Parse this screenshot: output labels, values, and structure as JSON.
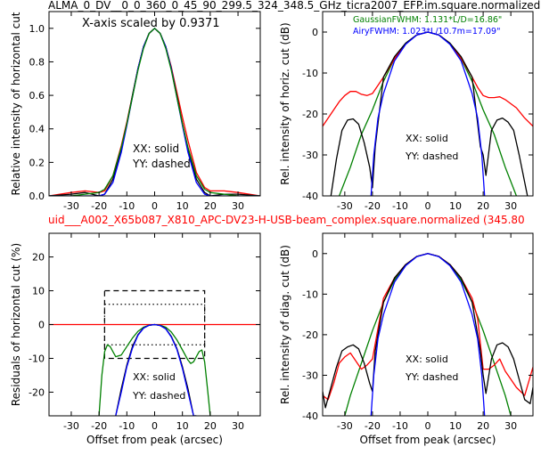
{
  "figure": {
    "top_title": "ALMA_0_DV__0_0_360_0_45_90_299.5_324_348.5_GHz_ticra2007_EFP.im.square.normalized",
    "mid_title": "uid___A002_X65b087_X810_APC-DV23-H-USB-beam_complex.square.normalized (345.80",
    "colors": {
      "black": "#000000",
      "blue": "#0000ff",
      "green": "#008000",
      "red": "#ff0000"
    }
  },
  "chart_data": [
    {
      "id": "horiz_linear",
      "type": "line",
      "ylabel": "Relative intensity of horizontal cut",
      "xlabel": "",
      "xlim": [
        -38,
        38
      ],
      "ylim": [
        0,
        1.1
      ],
      "xticks": [
        -30,
        -20,
        -10,
        0,
        10,
        20,
        30
      ],
      "yticks": [
        0.0,
        0.2,
        0.4,
        0.6,
        0.8,
        1.0
      ],
      "annotations": [
        "X-axis scaled by 0.9371",
        "XX: solid",
        "YY: dashed"
      ],
      "series": [
        {
          "color": "red",
          "x": [
            -38,
            -30,
            -25,
            -20,
            -18,
            -15,
            -12,
            -10,
            -8,
            -6,
            -4,
            -2,
            0,
            2,
            4,
            6,
            8,
            10,
            12,
            15,
            18,
            20,
            25,
            30,
            38
          ],
          "y": [
            0.0,
            0.02,
            0.03,
            0.02,
            0.03,
            0.12,
            0.3,
            0.44,
            0.6,
            0.76,
            0.89,
            0.97,
            1.0,
            0.97,
            0.89,
            0.77,
            0.62,
            0.47,
            0.33,
            0.14,
            0.05,
            0.03,
            0.03,
            0.02,
            0.0
          ]
        },
        {
          "color": "black",
          "x": [
            -38,
            -30,
            -25,
            -20,
            -18,
            -15,
            -12,
            -10,
            -8,
            -6,
            -4,
            -2,
            0,
            2,
            4,
            6,
            8,
            10,
            12,
            15,
            18,
            20,
            25,
            30,
            38
          ],
          "y": [
            0.0,
            0.01,
            0.02,
            0.0,
            0.01,
            0.1,
            0.28,
            0.43,
            0.6,
            0.76,
            0.89,
            0.97,
            1.0,
            0.97,
            0.89,
            0.76,
            0.6,
            0.43,
            0.28,
            0.1,
            0.02,
            0.0,
            0.01,
            0.01,
            0.0
          ]
        },
        {
          "color": "blue",
          "x": [
            -38,
            -30,
            -25,
            -20,
            -18,
            -15,
            -12,
            -10,
            -8,
            -6,
            -4,
            -2,
            0,
            2,
            4,
            6,
            8,
            10,
            12,
            15,
            18,
            20,
            25,
            30,
            38
          ],
          "y": [
            0.0,
            0.0,
            0.0,
            0.0,
            0.01,
            0.08,
            0.26,
            0.42,
            0.59,
            0.76,
            0.89,
            0.97,
            1.0,
            0.97,
            0.89,
            0.76,
            0.59,
            0.42,
            0.26,
            0.08,
            0.01,
            0.0,
            0.0,
            0.0,
            0.0
          ]
        },
        {
          "color": "green",
          "x": [
            -38,
            -30,
            -25,
            -20,
            -18,
            -15,
            -12,
            -10,
            -8,
            -6,
            -4,
            -2,
            0,
            2,
            4,
            6,
            8,
            10,
            12,
            15,
            18,
            20,
            25,
            30,
            38
          ],
          "y": [
            0.0,
            0.0,
            0.01,
            0.02,
            0.04,
            0.12,
            0.29,
            0.43,
            0.59,
            0.75,
            0.88,
            0.97,
            1.0,
            0.97,
            0.88,
            0.75,
            0.59,
            0.43,
            0.29,
            0.12,
            0.04,
            0.02,
            0.01,
            0.0,
            0.0
          ]
        }
      ]
    },
    {
      "id": "horiz_db",
      "type": "line",
      "ylabel": "Rel. intensity of horiz. cut (dB)",
      "xlabel": "",
      "xlim": [
        -38,
        38
      ],
      "ylim": [
        -40,
        5
      ],
      "xticks": [
        -30,
        -20,
        -10,
        0,
        10,
        20,
        30
      ],
      "yticks": [
        0,
        -10,
        -20,
        -30,
        -40
      ],
      "annotations": [
        "GaussianFWHM: 1.131*L/D=16.86\"",
        "AiryFWHM: 1.023*L/10.7m=17.09\"",
        "XX: solid",
        "YY: dashed"
      ],
      "series": [
        {
          "color": "green",
          "x": [
            -32,
            -28,
            -24,
            -20,
            -16,
            -12,
            -8,
            -4,
            0,
            4,
            8,
            12,
            16,
            20,
            24,
            28,
            32
          ],
          "y": [
            -40,
            -33,
            -25,
            -19,
            -12,
            -6.5,
            -2.9,
            -0.7,
            0,
            -0.7,
            -2.9,
            -6.5,
            -12,
            -19,
            -25,
            -33,
            -40
          ]
        },
        {
          "color": "red",
          "x": [
            -38,
            -35,
            -32,
            -30,
            -28,
            -26,
            -24,
            -22,
            -20,
            -16,
            -12,
            -8,
            -4,
            0,
            4,
            8,
            12,
            16,
            18,
            20,
            22,
            24,
            26,
            28,
            32,
            35,
            38
          ],
          "y": [
            -23,
            -20,
            -17,
            -15.5,
            -14.5,
            -14.5,
            -15.2,
            -15.5,
            -15,
            -11,
            -6.5,
            -2.9,
            -0.7,
            0,
            -0.7,
            -2.8,
            -6.4,
            -11,
            -13.5,
            -15.5,
            -16,
            -16,
            -15.8,
            -16.5,
            -18.5,
            -21,
            -23
          ]
        },
        {
          "color": "black",
          "x": [
            -35,
            -33,
            -31,
            -29,
            -27,
            -25,
            -23,
            -21,
            -20,
            -19,
            -16,
            -12,
            -8,
            -4,
            0,
            4,
            8,
            12,
            16,
            19,
            20,
            21,
            23,
            25,
            27,
            29,
            31,
            33,
            36
          ],
          "y": [
            -40,
            -31,
            -24,
            -21.5,
            -21.2,
            -22.5,
            -27,
            -33,
            -38,
            -28,
            -11,
            -6,
            -2.7,
            -0.7,
            0,
            -0.7,
            -2.7,
            -6,
            -11,
            -28,
            -30,
            -35,
            -24,
            -21.5,
            -21,
            -22,
            -24,
            -30,
            -40
          ]
        },
        {
          "color": "blue",
          "x": [
            -20.5,
            -19.5,
            -18,
            -16,
            -12,
            -8,
            -4,
            0,
            4,
            8,
            12,
            16,
            18,
            19.5,
            20.5
          ],
          "y": [
            -40,
            -30,
            -21,
            -15,
            -7,
            -3,
            -0.75,
            0,
            -0.75,
            -3,
            -7,
            -15,
            -21,
            -30,
            -40
          ]
        }
      ]
    },
    {
      "id": "residuals",
      "type": "line",
      "ylabel": "Residuals of horizontal cut (%)",
      "xlabel": "Offset from peak (arcsec)",
      "xlim": [
        -38,
        38
      ],
      "ylim": [
        -27,
        27
      ],
      "xticks": [
        -30,
        -20,
        -10,
        0,
        10,
        20,
        30
      ],
      "yticks": [
        20,
        10,
        0,
        -10,
        -20
      ],
      "annotations": [
        "XX: solid",
        "YY: dashed"
      ],
      "series": [
        {
          "color": "red",
          "x": [
            -38,
            38
          ],
          "y": [
            0,
            0
          ]
        },
        {
          "color": "green",
          "x": [
            -20,
            -19,
            -18,
            -17,
            -16,
            -15,
            -14,
            -12,
            -10,
            -8,
            -6,
            -4,
            -2,
            0,
            2,
            4,
            6,
            8,
            10,
            12,
            13,
            14,
            15,
            16,
            17,
            18,
            19,
            20
          ],
          "y": [
            -27,
            -15,
            -8,
            -6,
            -6.5,
            -8,
            -9.5,
            -9,
            -6.5,
            -4,
            -2,
            -0.8,
            -0.2,
            0,
            -0.2,
            -0.8,
            -2.2,
            -4.5,
            -7.5,
            -10.5,
            -11.5,
            -11,
            -9.5,
            -8,
            -7.5,
            -11,
            -19,
            -27
          ]
        },
        {
          "color": "black",
          "x": [
            -14,
            -12,
            -10,
            -8,
            -6,
            -4,
            -2,
            0,
            2,
            4,
            6,
            8,
            10,
            12,
            14,
            15
          ],
          "y": [
            -27,
            -19,
            -12,
            -6.5,
            -3,
            -1,
            -0.2,
            0,
            -0.3,
            -1.2,
            -3.5,
            -7,
            -12.5,
            -19,
            -27,
            -27
          ]
        },
        {
          "color": "blue",
          "x": [
            -14,
            -12,
            -10,
            -8,
            -6,
            -4,
            -2,
            0,
            2,
            4,
            6,
            8,
            10,
            12,
            14,
            15
          ],
          "y": [
            -27,
            -20,
            -12.5,
            -7,
            -3.2,
            -1.1,
            -0.2,
            0,
            -0.3,
            -1.3,
            -3.7,
            -7.3,
            -13,
            -20,
            -27,
            -27
          ]
        }
      ],
      "boxes": [
        {
          "style": "dashed",
          "x": [
            -18,
            18
          ],
          "y": [
            -10,
            10
          ]
        },
        {
          "style": "dotted",
          "x": [
            -18,
            18
          ],
          "y": [
            -6,
            6
          ]
        }
      ]
    },
    {
      "id": "diag_db",
      "type": "line",
      "ylabel": "Rel. intensity of diag. cut (dB)",
      "xlabel": "Offset from peak (arcsec)",
      "xlim": [
        -38,
        38
      ],
      "ylim": [
        -40,
        5
      ],
      "xticks": [
        -30,
        -20,
        -10,
        0,
        10,
        20,
        30
      ],
      "yticks": [
        0,
        -10,
        -20,
        -30,
        -40
      ],
      "annotations": [
        "XX: solid",
        "YY: dashed"
      ],
      "series": [
        {
          "color": "green",
          "x": [
            -30,
            -28,
            -24,
            -20,
            -16,
            -12,
            -8,
            -4,
            0,
            4,
            8,
            12,
            16,
            20,
            24,
            28,
            30
          ],
          "y": [
            -40,
            -35,
            -27,
            -19,
            -12,
            -6.5,
            -2.9,
            -0.7,
            0,
            -0.7,
            -2.9,
            -6.5,
            -12,
            -19,
            -27,
            -35,
            -40
          ]
        },
        {
          "color": "red",
          "x": [
            -38,
            -36,
            -34,
            -32,
            -30,
            -28,
            -26,
            -24,
            -22,
            -20,
            -16,
            -12,
            -8,
            -4,
            0,
            4,
            8,
            12,
            16,
            18,
            20,
            22,
            24,
            26,
            28,
            30,
            32,
            35,
            38
          ],
          "y": [
            -35,
            -36,
            -32,
            -27,
            -25.5,
            -24.5,
            -26.5,
            -28.5,
            -27.5,
            -26,
            -11,
            -6,
            -2.7,
            -0.7,
            0,
            -0.7,
            -2.7,
            -6,
            -11,
            -16,
            -28.5,
            -28.5,
            -27.5,
            -26,
            -29,
            -31,
            -33,
            -35,
            -28
          ]
        },
        {
          "color": "black",
          "x": [
            -38,
            -37,
            -35,
            -33,
            -31,
            -29,
            -27,
            -25,
            -23,
            -21,
            -20,
            -19,
            -16,
            -12,
            -8,
            -4,
            0,
            4,
            8,
            12,
            16,
            19,
            20,
            21,
            23,
            25,
            27,
            29,
            31,
            33,
            35,
            37,
            38
          ],
          "y": [
            -34,
            -38,
            -33,
            -28,
            -24,
            -23,
            -22.5,
            -23.5,
            -27,
            -32,
            -34,
            -24,
            -12,
            -6,
            -2.7,
            -0.7,
            0,
            -0.7,
            -2.7,
            -6,
            -12,
            -24,
            -30,
            -34.5,
            -26,
            -22.5,
            -22,
            -23,
            -26,
            -31,
            -36,
            -37,
            -33
          ]
        },
        {
          "color": "blue",
          "x": [
            -20.5,
            -19.5,
            -18,
            -16,
            -12,
            -8,
            -4,
            0,
            4,
            8,
            12,
            16,
            18,
            19.5,
            20.5
          ],
          "y": [
            -40,
            -30,
            -21,
            -15,
            -7,
            -3,
            -0.75,
            0,
            -0.75,
            -3,
            -7,
            -15,
            -21,
            -30,
            -40
          ]
        }
      ]
    }
  ]
}
